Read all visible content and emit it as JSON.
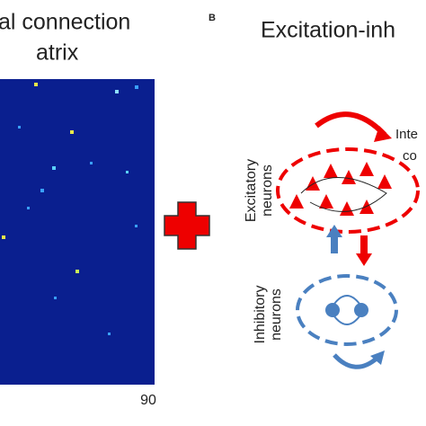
{
  "panel_a": {
    "title_lines": [
      "al connection",
      "atrix"
    ],
    "axis_label": "90"
  },
  "panel_b": {
    "label": "B",
    "title": "Excitation-inh",
    "excitatory_label": [
      "Excitatory",
      "neurons"
    ],
    "inhibitory_label": [
      "Inhibitory",
      "neurons"
    ],
    "side_text": [
      "Inte",
      "co"
    ]
  }
}
